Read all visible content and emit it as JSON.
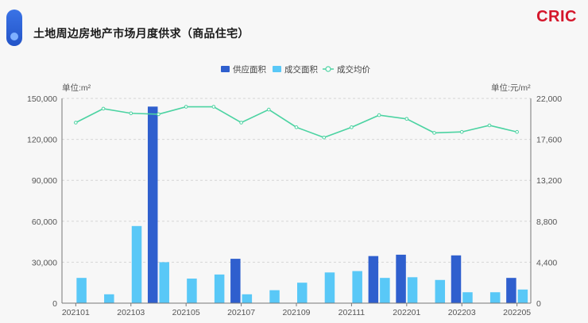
{
  "header": {
    "title": "土地周边房地产市场月度供求（商品住宅）",
    "logo": "CRIC"
  },
  "chart_data": {
    "type": "bar",
    "categories": [
      "202101",
      "202102",
      "202103",
      "202104",
      "202105",
      "202106",
      "202107",
      "202108",
      "202109",
      "202110",
      "202111",
      "202112",
      "202201",
      "202202",
      "202203",
      "202204",
      "202205"
    ],
    "series": [
      {
        "name": "供应面积",
        "type": "bar",
        "axis": "left",
        "color": "#2f5fce",
        "values": [
          0,
          0,
          0,
          144000,
          0,
          0,
          32500,
          0,
          0,
          0,
          0,
          34500,
          35500,
          0,
          35000,
          0,
          18500
        ]
      },
      {
        "name": "成交面积",
        "type": "bar",
        "axis": "left",
        "color": "#59c8f7",
        "values": [
          18500,
          6500,
          56500,
          30000,
          18000,
          21000,
          6500,
          9500,
          15000,
          22500,
          23500,
          18500,
          19000,
          17000,
          8000,
          8000,
          10000
        ]
      },
      {
        "name": "成交均价",
        "type": "line",
        "axis": "right",
        "color": "#4cd3a2",
        "values": [
          19400,
          20900,
          20400,
          20300,
          21100,
          21100,
          19400,
          20800,
          18900,
          17800,
          18900,
          20200,
          19800,
          18300,
          18400,
          19100,
          18400
        ]
      }
    ],
    "left_axis": {
      "label": "单位:m²",
      "min": 0,
      "max": 150000,
      "ticks": [
        "0",
        "30,000",
        "60,000",
        "90,000",
        "120,000",
        "150,000"
      ]
    },
    "right_axis": {
      "label": "单位:元/m²",
      "min": 0,
      "max": 22000,
      "ticks": [
        "0",
        "4,400",
        "8,800",
        "13,200",
        "17,600",
        "22,000"
      ]
    },
    "x_tick_labels": [
      "202101",
      "202103",
      "202105",
      "202107",
      "202109",
      "202111",
      "202201",
      "202203",
      "202205"
    ],
    "legend_position": "top-center",
    "grid": "horizontal-dashed"
  }
}
